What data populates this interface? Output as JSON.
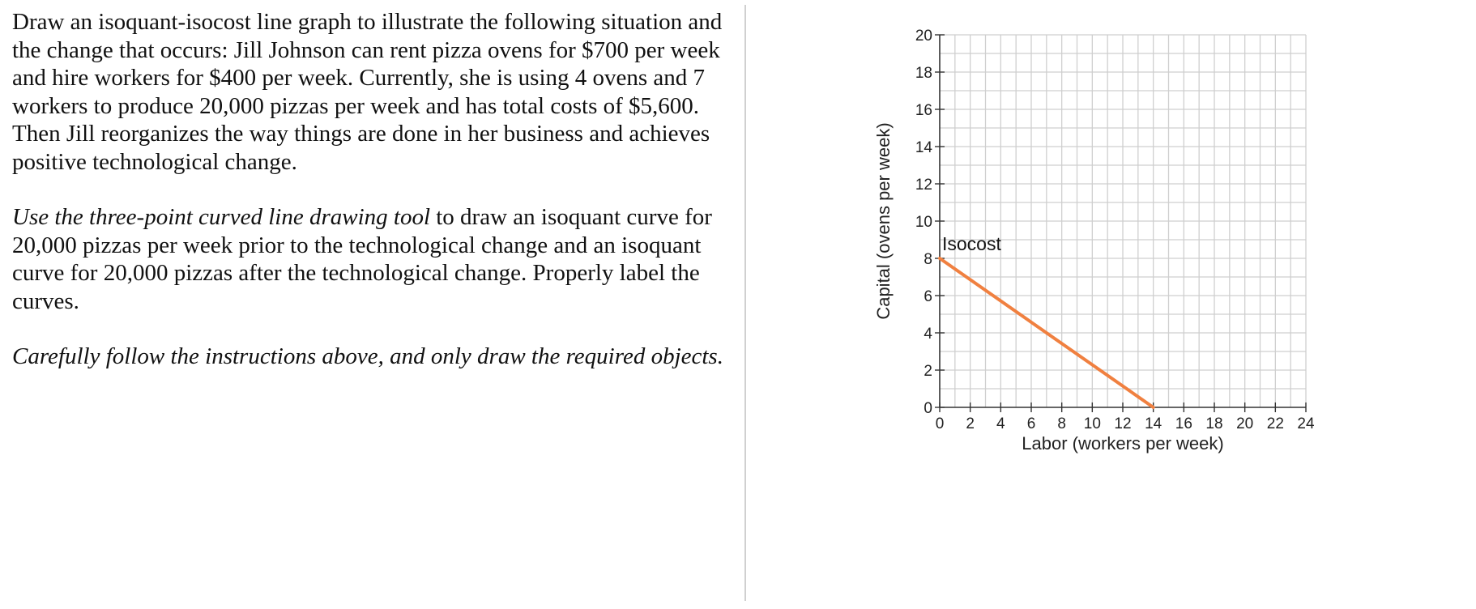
{
  "question": {
    "paragraph1": "Draw an isoquant-isocost line graph to illustrate the following situation and the change that occurs: Jill Johnson can rent pizza ovens for $700 per week and hire workers for $400 per week.  Currently, she is using 4 ovens and 7 workers to produce 20,000 pizzas per week and has total costs of $5,600.  Then Jill reorganizes the way things are done in her business and achieves positive technological change.",
    "paragraph2_italic": "Use the three-point curved line drawing tool",
    "paragraph2_rest": " to draw an isoquant curve for 20,000 pizzas per week prior to the technological change and an isoquant curve for 20,000 pizzas after the technological change. Properly label the curves.",
    "paragraph3": "Carefully follow the instructions above, and only draw the required objects."
  },
  "chart_data": {
    "type": "line",
    "xlabel": "Labor (workers per week)",
    "ylabel": "Capital (ovens per week)",
    "xlim": [
      0,
      24
    ],
    "ylim": [
      0,
      20
    ],
    "xticks": [
      0,
      2,
      4,
      6,
      8,
      10,
      12,
      14,
      16,
      18,
      20,
      22,
      24
    ],
    "yticks": [
      0,
      2,
      4,
      6,
      8,
      10,
      12,
      14,
      16,
      18,
      20
    ],
    "minor_step": 1,
    "grid": true,
    "series": [
      {
        "name": "Isocost",
        "color": "#f08040",
        "points": [
          [
            0,
            8
          ],
          [
            14,
            0
          ]
        ]
      }
    ]
  }
}
